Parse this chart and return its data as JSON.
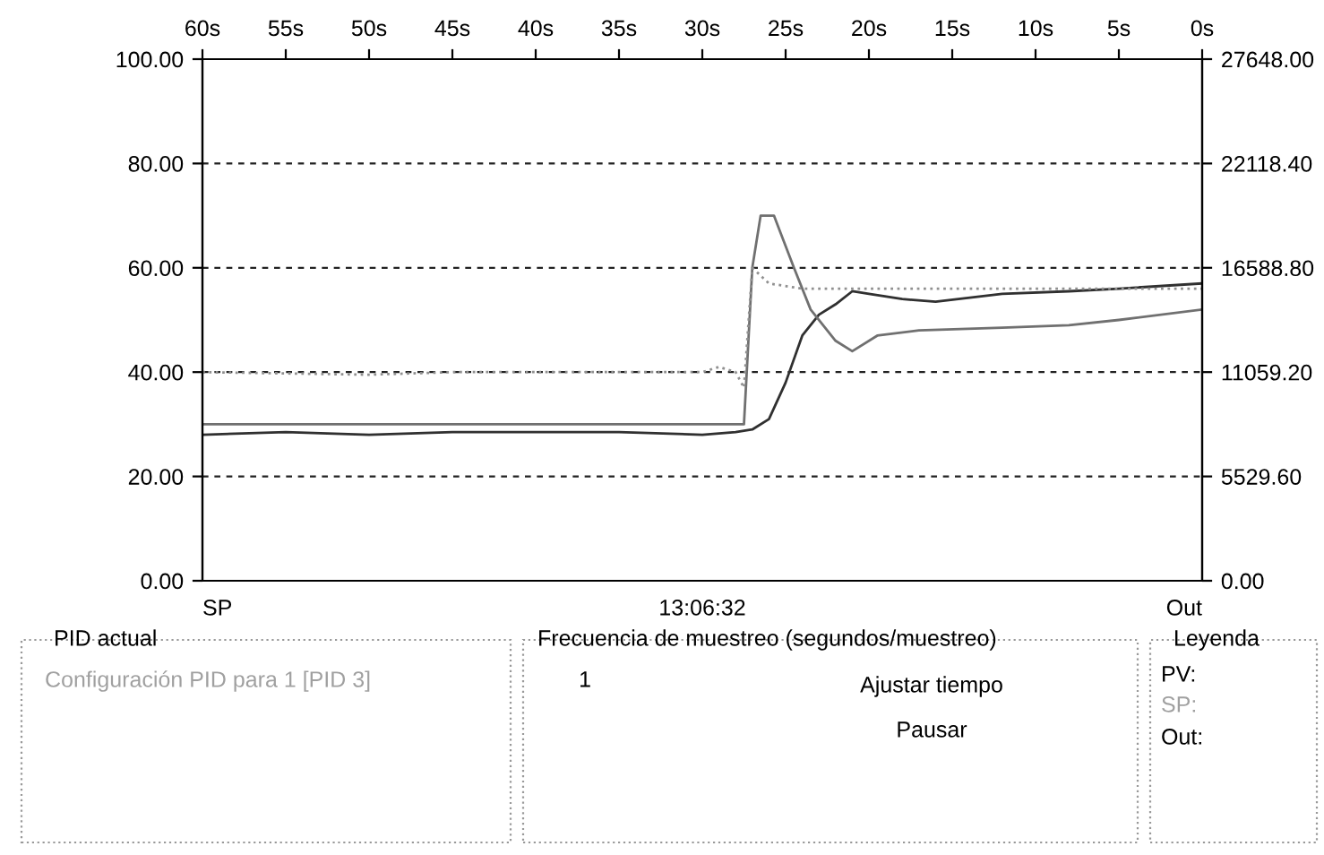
{
  "chart_data": {
    "type": "line",
    "series": [
      {
        "color": "#303030",
        "line_style": "solid",
        "x": [
          60,
          55,
          50,
          45,
          40,
          35,
          30,
          28,
          27,
          26,
          25,
          24,
          23,
          22,
          21,
          20,
          18,
          16,
          12,
          8,
          5,
          0
        ],
        "values": [
          28,
          28.5,
          28,
          28.5,
          28.5,
          28.5,
          28,
          28.5,
          29,
          31,
          38,
          47,
          51,
          53,
          55.5,
          55,
          54,
          53.5,
          55,
          55.5,
          56,
          57
        ]
      },
      {
        "color": "#707070",
        "line_style": "solid",
        "x": [
          60,
          50,
          40,
          30,
          28,
          27.5,
          27,
          26.5,
          25.7,
          24.5,
          23.5,
          22,
          21,
          19.5,
          17,
          12,
          8,
          5,
          0
        ],
        "values": [
          30,
          30,
          30,
          30,
          30,
          30,
          60,
          70,
          70,
          60,
          52,
          46,
          44,
          47,
          48,
          48.5,
          49,
          50,
          52
        ]
      },
      {
        "color": "#909090",
        "line_style": "dotted",
        "x": [
          60,
          50,
          45,
          40,
          35,
          30,
          29,
          28,
          27.5,
          27,
          26,
          24,
          20,
          10,
          0
        ],
        "values": [
          40,
          39.5,
          40,
          40,
          40,
          40,
          41,
          40,
          37,
          60,
          57,
          56,
          56,
          56,
          56
        ]
      }
    ],
    "xlim": [
      60,
      0
    ],
    "xticks": [
      {
        "value": 60,
        "label": "60s"
      },
      {
        "value": 55,
        "label": "55s"
      },
      {
        "value": 50,
        "label": "50s"
      },
      {
        "value": 45,
        "label": "45s"
      },
      {
        "value": 40,
        "label": "40s"
      },
      {
        "value": 35,
        "label": "35s"
      },
      {
        "value": 30,
        "label": "30s"
      },
      {
        "value": 25,
        "label": "25s"
      },
      {
        "value": 20,
        "label": "20s"
      },
      {
        "value": 15,
        "label": "15s"
      },
      {
        "value": 10,
        "label": "10s"
      },
      {
        "value": 5,
        "label": "5s"
      },
      {
        "value": 0,
        "label": "0s"
      }
    ],
    "ylim": [
      0,
      100
    ],
    "yticks": [
      {
        "value": 0,
        "label": "0.00"
      },
      {
        "value": 20,
        "label": "20.00"
      },
      {
        "value": 40,
        "label": "40.00"
      },
      {
        "value": 60,
        "label": "60.00"
      },
      {
        "value": 80,
        "label": "80.00"
      },
      {
        "value": 100,
        "label": "100.00"
      }
    ],
    "y2lim": [
      0,
      27648
    ],
    "y2ticks": [
      {
        "value": 0,
        "label": "0.00"
      },
      {
        "value": 5529.6,
        "label": "5529.60"
      },
      {
        "value": 11059.2,
        "label": "11059.20"
      },
      {
        "value": 16588.8,
        "label": "16588.80"
      },
      {
        "value": 22118.4,
        "label": "22118.40"
      },
      {
        "value": 27648,
        "label": "27648.00"
      }
    ],
    "grid": "y",
    "annotations": [
      "SP",
      "13:06:32",
      "Out",
      "PID actual",
      "Configuración PID para 1 [PID 3]",
      "Frecuencia de muestreo (segundos/muestreo)",
      "1",
      "Ajustar tiempo",
      "Pausar",
      "Leyenda",
      "PV:",
      "SP:",
      "Out:"
    ]
  }
}
